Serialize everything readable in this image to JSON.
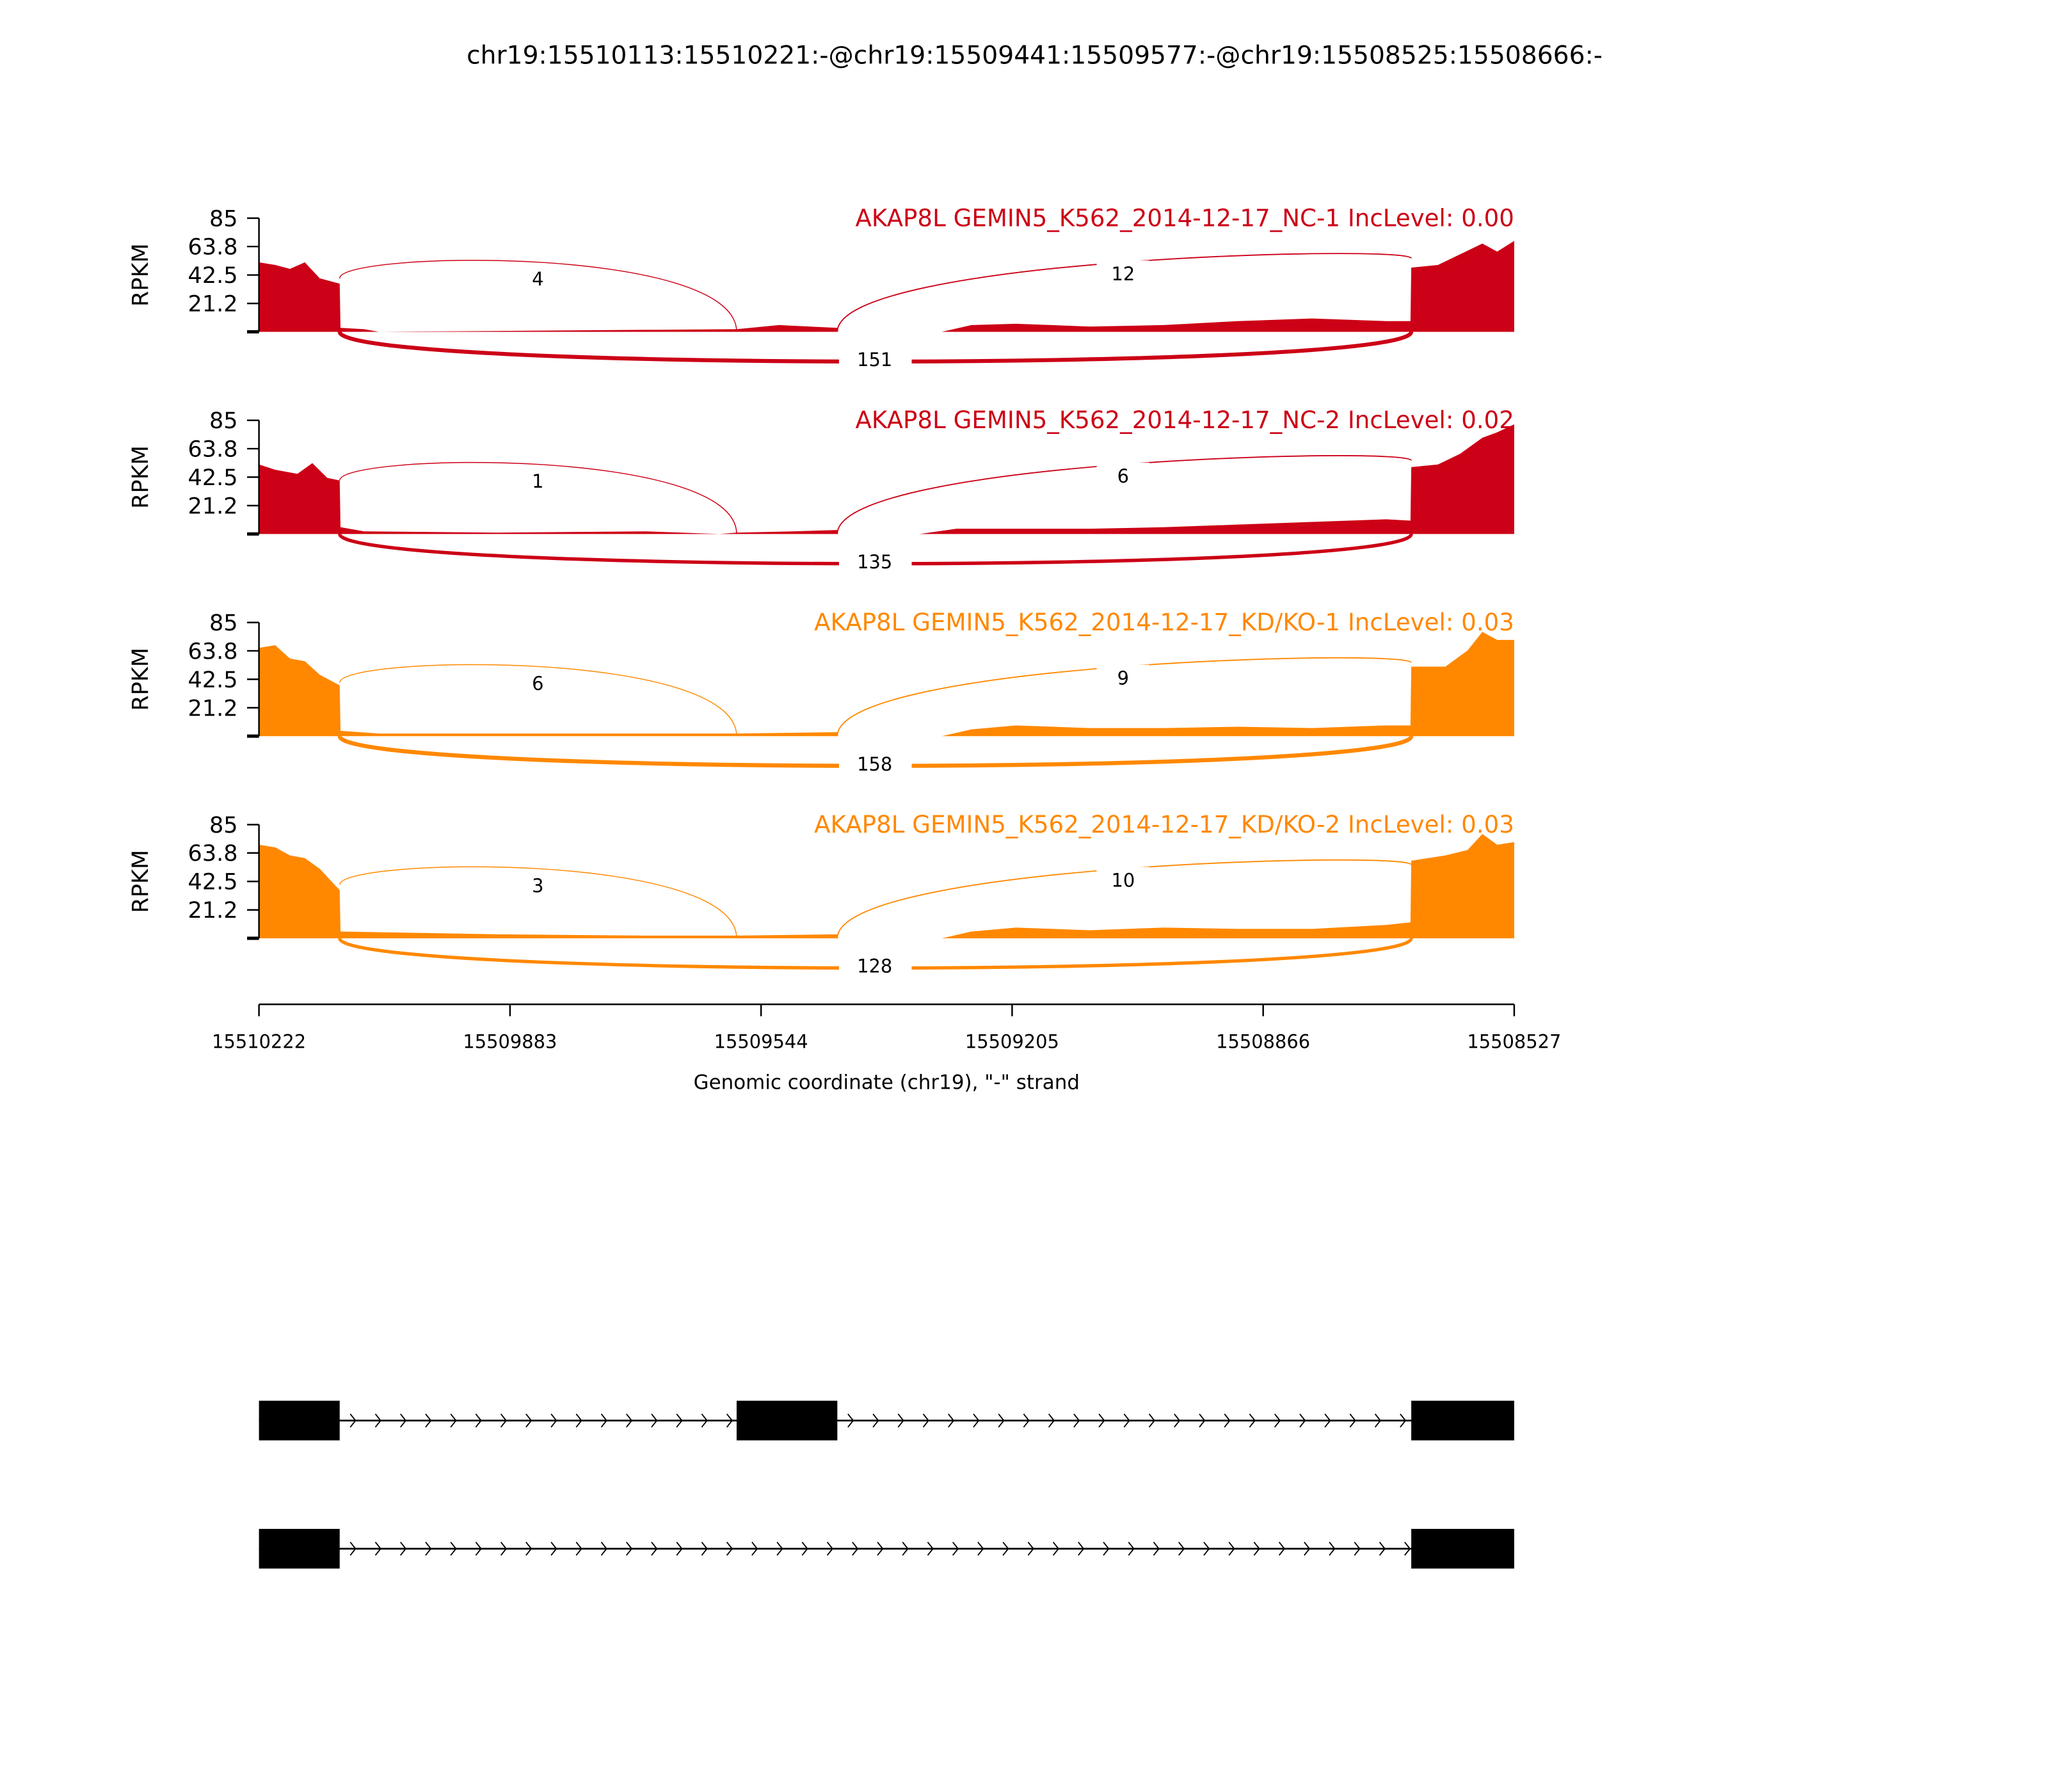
{
  "chart_data": {
    "type": "area",
    "title": "chr19:15510113:15510221:-@chr19:15509441:15509577:-@chr19:15508525:15508666:-",
    "xlabel": "Genomic coordinate (chr19), \"-\" strand",
    "ylabel": "RPKM",
    "xlim": [
      15510222,
      15508527
    ],
    "ylim": [
      0,
      85
    ],
    "yticks": [
      "85",
      "63.8",
      "42.5",
      "21.2"
    ],
    "xticks": [
      "15510222",
      "15509883",
      "15509544",
      "15509205",
      "15508866",
      "15508527"
    ],
    "exons": [
      [
        15510222,
        15510113
      ],
      [
        15509577,
        15509441
      ],
      [
        15508666,
        15508527
      ]
    ],
    "samples": [
      {
        "label": "AKAP8L GEMIN5_K562_2014-12-17_NC-1 IncLevel: 0.00",
        "color": "#cc0016",
        "junctions": {
          "up": "4",
          "down": "12",
          "skip": "151"
        },
        "skip_width": 3,
        "coverage": [
          [
            15510222,
            52
          ],
          [
            15510200,
            50
          ],
          [
            15510180,
            47
          ],
          [
            15510160,
            52
          ],
          [
            15510140,
            40
          ],
          [
            15510113,
            36
          ],
          [
            15510112,
            3
          ],
          [
            15510080,
            2
          ],
          [
            15510060,
            0
          ],
          [
            15509577,
            2
          ],
          [
            15509520,
            5
          ],
          [
            15509441,
            3
          ],
          [
            15509440,
            0
          ],
          [
            15509300,
            0
          ],
          [
            15509260,
            5
          ],
          [
            15509200,
            6
          ],
          [
            15509100,
            4
          ],
          [
            15509000,
            5
          ],
          [
            15508900,
            8
          ],
          [
            15508800,
            10
          ],
          [
            15508700,
            8
          ],
          [
            15508667,
            8
          ],
          [
            15508666,
            48
          ],
          [
            15508630,
            50
          ],
          [
            15508600,
            58
          ],
          [
            15508570,
            66
          ],
          [
            15508550,
            60
          ],
          [
            15508527,
            68
          ]
        ]
      },
      {
        "label": "AKAP8L GEMIN5_K562_2014-12-17_NC-2 IncLevel: 0.02",
        "color": "#cc0016",
        "junctions": {
          "up": "1",
          "down": "6",
          "skip": "135"
        },
        "skip_width": 2.6,
        "coverage": [
          [
            15510222,
            52
          ],
          [
            15510200,
            48
          ],
          [
            15510170,
            45
          ],
          [
            15510150,
            53
          ],
          [
            15510130,
            42
          ],
          [
            15510113,
            40
          ],
          [
            15510112,
            5
          ],
          [
            15510080,
            2
          ],
          [
            15509900,
            1
          ],
          [
            15509700,
            2
          ],
          [
            15509600,
            0
          ],
          [
            15509577,
            1
          ],
          [
            15509500,
            2
          ],
          [
            15509441,
            3
          ],
          [
            15509440,
            0
          ],
          [
            15509330,
            0
          ],
          [
            15509280,
            4
          ],
          [
            15509200,
            4
          ],
          [
            15509100,
            4
          ],
          [
            15509000,
            5
          ],
          [
            15508900,
            7
          ],
          [
            15508800,
            9
          ],
          [
            15508700,
            11
          ],
          [
            15508667,
            10
          ],
          [
            15508666,
            50
          ],
          [
            15508630,
            52
          ],
          [
            15508600,
            60
          ],
          [
            15508570,
            72
          ],
          [
            15508550,
            76
          ],
          [
            15508527,
            82
          ]
        ]
      },
      {
        "label": "AKAP8L GEMIN5_K562_2014-12-17_KD/KO-1 IncLevel: 0.03",
        "color": "#ff8800",
        "junctions": {
          "up": "6",
          "down": "9",
          "skip": "158"
        },
        "skip_width": 3.1,
        "coverage": [
          [
            15510222,
            66
          ],
          [
            15510200,
            68
          ],
          [
            15510180,
            58
          ],
          [
            15510160,
            56
          ],
          [
            15510140,
            46
          ],
          [
            15510113,
            38
          ],
          [
            15510112,
            4
          ],
          [
            15510060,
            2
          ],
          [
            15509900,
            2
          ],
          [
            15509700,
            2
          ],
          [
            15509577,
            2
          ],
          [
            15509441,
            3
          ],
          [
            15509440,
            0
          ],
          [
            15509300,
            0
          ],
          [
            15509260,
            5
          ],
          [
            15509200,
            8
          ],
          [
            15509100,
            6
          ],
          [
            15509000,
            6
          ],
          [
            15508900,
            7
          ],
          [
            15508800,
            6
          ],
          [
            15508700,
            8
          ],
          [
            15508667,
            8
          ],
          [
            15508666,
            52
          ],
          [
            15508620,
            52
          ],
          [
            15508590,
            64
          ],
          [
            15508570,
            78
          ],
          [
            15508550,
            72
          ],
          [
            15508527,
            72
          ]
        ]
      },
      {
        "label": "AKAP8L GEMIN5_K562_2014-12-17_KD/KO-2 IncLevel: 0.03",
        "color": "#ff8800",
        "junctions": {
          "up": "3",
          "down": "10",
          "skip": "128"
        },
        "skip_width": 2.5,
        "coverage": [
          [
            15510222,
            70
          ],
          [
            15510200,
            68
          ],
          [
            15510180,
            62
          ],
          [
            15510160,
            60
          ],
          [
            15510140,
            52
          ],
          [
            15510113,
            36
          ],
          [
            15510112,
            5
          ],
          [
            15510000,
            4
          ],
          [
            15509900,
            3
          ],
          [
            15509700,
            2
          ],
          [
            15509577,
            2
          ],
          [
            15509441,
            3
          ],
          [
            15509440,
            0
          ],
          [
            15509300,
            0
          ],
          [
            15509260,
            5
          ],
          [
            15509200,
            8
          ],
          [
            15509100,
            6
          ],
          [
            15509000,
            8
          ],
          [
            15508900,
            7
          ],
          [
            15508800,
            7
          ],
          [
            15508700,
            10
          ],
          [
            15508667,
            12
          ],
          [
            15508666,
            58
          ],
          [
            15508620,
            62
          ],
          [
            15508590,
            66
          ],
          [
            15508570,
            78
          ],
          [
            15508550,
            70
          ],
          [
            15508527,
            72
          ]
        ]
      }
    ],
    "transcripts": [
      {
        "exons": [
          [
            15510222,
            15510113
          ],
          [
            15509577,
            15509441
          ],
          [
            15508666,
            15508527
          ]
        ]
      },
      {
        "exons": [
          [
            15510222,
            15510113
          ],
          [
            15508666,
            15508527
          ]
        ]
      }
    ]
  }
}
